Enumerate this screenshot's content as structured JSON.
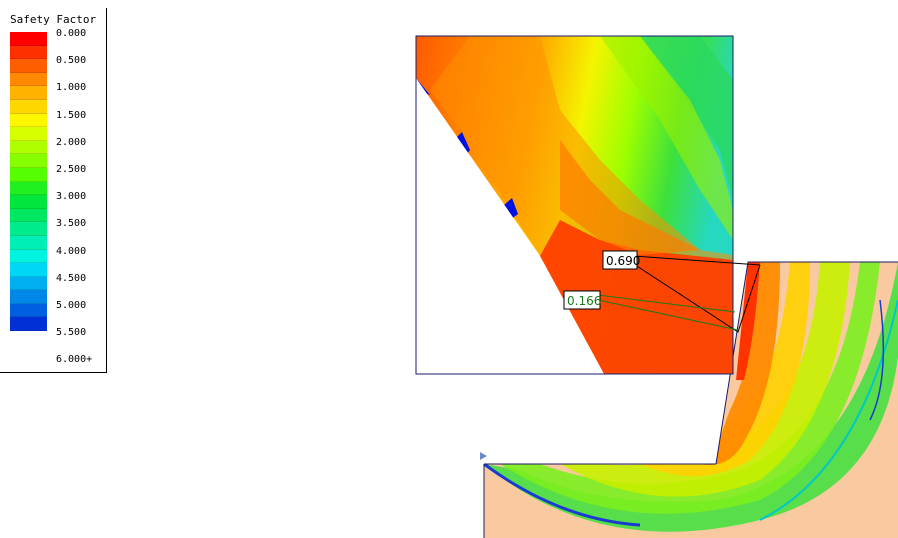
{
  "legend": {
    "title": "Safety Factor",
    "labels": [
      "0.000",
      "0.500",
      "1.000",
      "1.500",
      "2.000",
      "2.500",
      "3.000",
      "3.500",
      "4.000",
      "4.500",
      "5.000",
      "5.500",
      "6.000+"
    ],
    "colors": [
      "#ff0000",
      "#ff2f00",
      "#ff5e00",
      "#ff8a00",
      "#ffb300",
      "#ffd700",
      "#fff700",
      "#d8ff00",
      "#b0ff00",
      "#86ff00",
      "#56ff00",
      "#20f020",
      "#00e63c",
      "#00e862",
      "#00eb8c",
      "#00efb6",
      "#00f2e0",
      "#00d6f5",
      "#00aff0",
      "#0088e8",
      "#005fe0",
      "#0030d6"
    ]
  },
  "annotations": {
    "fs_primary": "0.690",
    "fs_secondary": "0.166",
    "fs_primary_color": "#000000",
    "fs_secondary_color": "#1a7a1a"
  },
  "colors": {
    "soil": "#f9caa0",
    "frame": "#1a1a6e",
    "bg": "#ffffff"
  }
}
